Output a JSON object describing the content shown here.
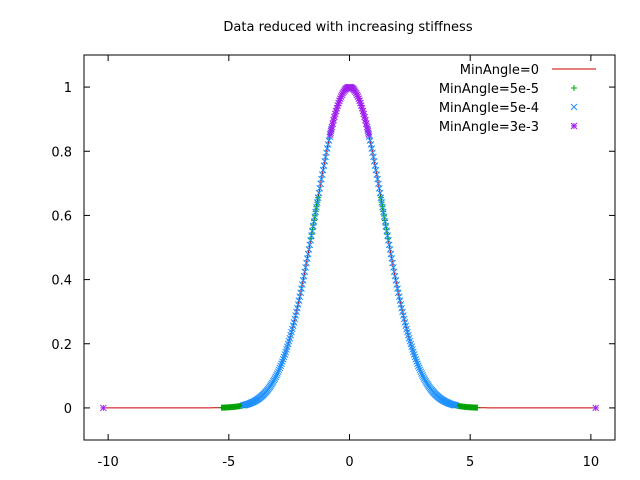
{
  "chart_data": {
    "type": "scatter",
    "title": "Data reduced with increasing stiffness",
    "xlabel": "",
    "ylabel": "",
    "xlim": [
      -11,
      11
    ],
    "ylim": [
      -0.1,
      1.1
    ],
    "x_ticks": [
      -10,
      -5,
      0,
      5,
      10
    ],
    "y_ticks": [
      0,
      0.2,
      0.4,
      0.6,
      0.8,
      1
    ],
    "grid": false,
    "legend_position": "top-right",
    "function": "y = exp(-x^2 / 4)",
    "series": [
      {
        "name": "MinAngle=0",
        "style": "line",
        "color": "#cc0000",
        "x_range": [
          -10.2,
          10.2
        ]
      },
      {
        "name": "MinAngle=5e-5",
        "style": "plus",
        "color": "#00a000",
        "x_segments": [
          [
            -5.3,
            -4.3
          ],
          [
            -1.6,
            -1.3
          ],
          [
            1.3,
            1.6
          ],
          [
            4.3,
            5.3
          ]
        ]
      },
      {
        "name": "MinAngle=5e-4",
        "style": "cross",
        "color": "#1e90ff",
        "x_segments": [
          [
            -4.4,
            -0.75
          ],
          [
            0.75,
            4.4
          ]
        ]
      },
      {
        "name": "MinAngle=3e-3",
        "style": "star",
        "color": "#a020f0",
        "x_segments": [
          [
            -0.8,
            0.8
          ]
        ],
        "x_points": [
          -10.2,
          10.2
        ]
      }
    ]
  }
}
